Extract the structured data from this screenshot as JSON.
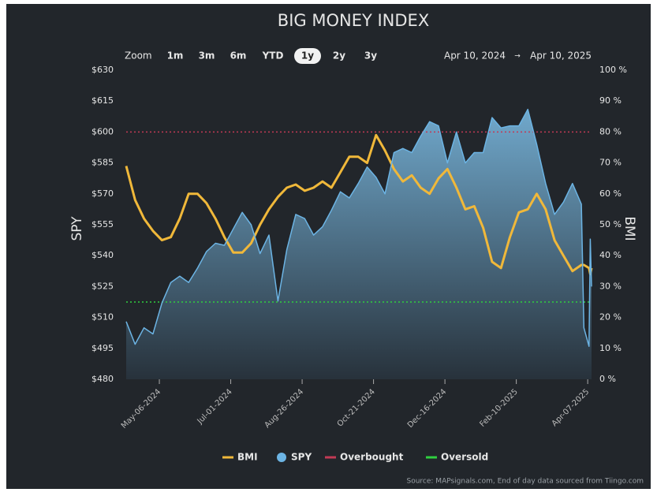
{
  "chart_data": {
    "type": "line",
    "title": "BIG MONEY INDEX",
    "zoom": {
      "label": "Zoom",
      "options": [
        "1m",
        "3m",
        "6m",
        "YTD",
        "1y",
        "2y",
        "3y"
      ],
      "selected": "1y"
    },
    "date_range": [
      "Apr 10, 2024",
      "Apr 10, 2025"
    ],
    "y_label": "SPY",
    "y2_label": "BMI",
    "source": "Source: MAPsignals.com, End of day data sourced from Tiingo.com",
    "x": [
      "2024-04-10",
      "2024-04-17",
      "2024-04-24",
      "2024-05-01",
      "2024-05-08",
      "2024-05-15",
      "2024-05-22",
      "2024-05-29",
      "2024-06-05",
      "2024-06-12",
      "2024-06-19",
      "2024-06-26",
      "2024-07-03",
      "2024-07-10",
      "2024-07-17",
      "2024-07-24",
      "2024-07-31",
      "2024-08-07",
      "2024-08-14",
      "2024-08-21",
      "2024-08-28",
      "2024-09-04",
      "2024-09-11",
      "2024-09-18",
      "2024-09-25",
      "2024-10-02",
      "2024-10-09",
      "2024-10-16",
      "2024-10-23",
      "2024-10-30",
      "2024-11-06",
      "2024-11-13",
      "2024-11-20",
      "2024-11-27",
      "2024-12-04",
      "2024-12-11",
      "2024-12-18",
      "2024-12-25",
      "2025-01-01",
      "2025-01-08",
      "2025-01-15",
      "2025-01-22",
      "2025-01-29",
      "2025-02-05",
      "2025-02-12",
      "2025-02-19",
      "2025-02-26",
      "2025-03-05",
      "2025-03-12",
      "2025-03-19",
      "2025-03-26",
      "2025-04-02",
      "2025-04-04",
      "2025-04-08",
      "2025-04-09",
      "2025-04-10"
    ],
    "xlim": [
      "2024-04-10",
      "2025-04-10"
    ],
    "xticks": [
      {
        "value": "2024-05-06",
        "label": "May-06-2024"
      },
      {
        "value": "2024-07-01",
        "label": "Jul-01-2024"
      },
      {
        "value": "2024-08-26",
        "label": "Aug-26-2024"
      },
      {
        "value": "2024-10-21",
        "label": "Oct-21-2024"
      },
      {
        "value": "2024-12-16",
        "label": "Dec-16-2024"
      },
      {
        "value": "2025-02-10",
        "label": "Feb-10-2025"
      },
      {
        "value": "2025-04-07",
        "label": "Apr-07-2025"
      }
    ],
    "ylim": [
      480,
      630
    ],
    "yticks": [
      {
        "value": 480,
        "label": "$480"
      },
      {
        "value": 495,
        "label": "$495"
      },
      {
        "value": 510,
        "label": "$510"
      },
      {
        "value": 525,
        "label": "$525"
      },
      {
        "value": 540,
        "label": "$540"
      },
      {
        "value": 555,
        "label": "$555"
      },
      {
        "value": 570,
        "label": "$570"
      },
      {
        "value": 585,
        "label": "$585"
      },
      {
        "value": 600,
        "label": "$600"
      },
      {
        "value": 615,
        "label": "$615"
      },
      {
        "value": 630,
        "label": "$630"
      }
    ],
    "y2lim": [
      0,
      100
    ],
    "y2ticks": [
      {
        "value": 0,
        "label": "0 %"
      },
      {
        "value": 10,
        "label": "10 %"
      },
      {
        "value": 20,
        "label": "20 %"
      },
      {
        "value": 30,
        "label": "30 %"
      },
      {
        "value": 40,
        "label": "40 %"
      },
      {
        "value": 50,
        "label": "50 %"
      },
      {
        "value": 60,
        "label": "60 %"
      },
      {
        "value": 70,
        "label": "70 %"
      },
      {
        "value": 80,
        "label": "80 %"
      },
      {
        "value": 90,
        "label": "90 %"
      },
      {
        "value": 100,
        "label": "100 %"
      }
    ],
    "series": [
      {
        "name": "BMI",
        "color": "#f0b83a",
        "axis": "y2",
        "values": [
          69,
          58,
          52,
          48,
          45,
          46,
          52,
          60,
          60,
          57,
          52,
          46,
          41,
          41,
          44,
          50,
          55,
          59,
          62,
          63,
          61,
          62,
          64,
          62,
          67,
          72,
          72,
          70,
          79,
          74,
          68,
          64,
          66,
          62,
          60,
          65,
          68,
          62,
          55,
          56,
          49,
          38,
          36,
          46,
          54,
          55,
          60,
          55,
          45,
          40,
          35,
          37,
          37,
          36,
          34,
          36
        ]
      },
      {
        "name": "SPY",
        "color": "#6cb4e4",
        "values": [
          508,
          497,
          505,
          502,
          517,
          527,
          530,
          527,
          534,
          542,
          546,
          545,
          553,
          561,
          555,
          541,
          550,
          518,
          543,
          560,
          558,
          550,
          554,
          562,
          571,
          568,
          575,
          583,
          578,
          570,
          590,
          592,
          590,
          598,
          605,
          603,
          585,
          600,
          585,
          590,
          590,
          607,
          602,
          603,
          603,
          611,
          594,
          575,
          560,
          566,
          575,
          565,
          505,
          496,
          548,
          525
        ]
      }
    ],
    "reference_lines": [
      {
        "name": "Overbought",
        "color": "#c23a55",
        "axis": "y2",
        "value": 80
      },
      {
        "name": "Oversold",
        "color": "#2fcf3f",
        "axis": "y2",
        "value": 25
      }
    ]
  }
}
